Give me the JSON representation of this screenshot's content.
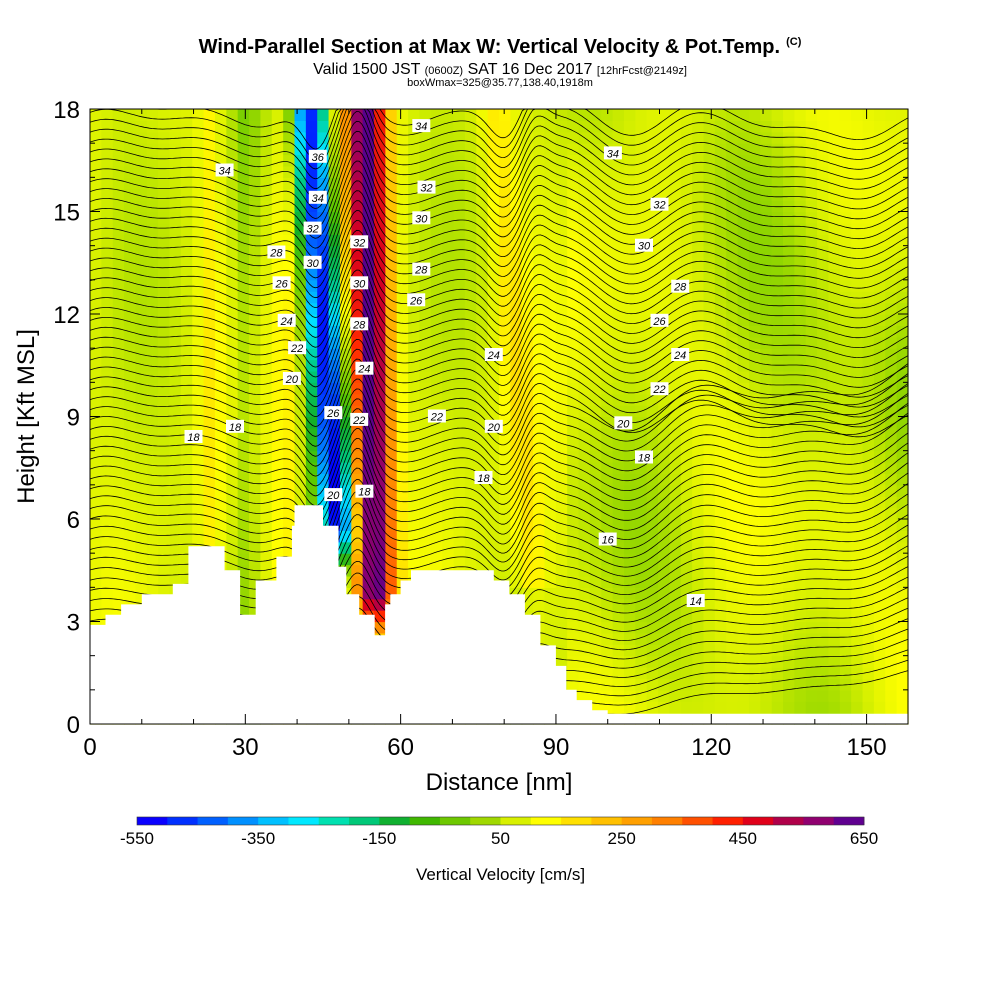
{
  "title": {
    "main": "Wind-Parallel Section at Max W: Vertical Velocity & Pot.Temp.",
    "main_sup": "(C)",
    "valid_prefix": "Valid 1500 JST",
    "valid_utc": "(0600Z)",
    "valid_date": "SAT 16 Dec 2017",
    "forecast": "[12hrFcst@2149z]",
    "boxline": "boxWmax=325@35.77,138.40,1918m"
  },
  "colors": {
    "terrain": "#ffffff",
    "contour": "#000000",
    "colorbar": [
      "#0a00ff",
      "#0030ff",
      "#0060ff",
      "#0090ff",
      "#00c0ff",
      "#00e8ff",
      "#00e0b0",
      "#00c878",
      "#10b030",
      "#40b800",
      "#6ec800",
      "#a0d800",
      "#d8f000",
      "#ffff00",
      "#ffe000",
      "#ffc000",
      "#ffa000",
      "#ff8000",
      "#ff5000",
      "#ff2000",
      "#e0001a",
      "#b0004a",
      "#900070",
      "#600090"
    ]
  },
  "chart_data": {
    "type": "heatmap",
    "xlabel": "Distance [nm]",
    "ylabel": "Height [Kft MSL]",
    "xlim": [
      0,
      158
    ],
    "ylim": [
      0,
      18
    ],
    "xticks": [
      0,
      30,
      60,
      90,
      120,
      150
    ],
    "yticks": [
      0,
      3,
      6,
      9,
      12,
      15,
      18
    ],
    "fill_variable": {
      "name": "Vertical Velocity [cm/s]",
      "range": [
        -550,
        650
      ],
      "ticks": [
        -550,
        -350,
        -150,
        50,
        250,
        450,
        650
      ],
      "features": [
        {
          "kind": "downdraft",
          "x_center": 45,
          "min_value": -550,
          "height_range": [
            6,
            18
          ]
        },
        {
          "kind": "updraft",
          "x_center": 53,
          "max_value": 650,
          "height_range": [
            4,
            18
          ]
        }
      ]
    },
    "contour_variable": {
      "name": "Pot.Temp. (C)",
      "interval": 2,
      "labels": [
        {
          "value": 34,
          "x": 26,
          "y": 16.2
        },
        {
          "value": 36,
          "x": 44,
          "y": 16.6
        },
        {
          "value": 34,
          "x": 44,
          "y": 15.4
        },
        {
          "value": 32,
          "x": 43,
          "y": 14.5
        },
        {
          "value": 30,
          "x": 43,
          "y": 13.5
        },
        {
          "value": 28,
          "x": 36,
          "y": 13.8
        },
        {
          "value": 26,
          "x": 37,
          "y": 12.9
        },
        {
          "value": 24,
          "x": 38,
          "y": 11.8
        },
        {
          "value": 22,
          "x": 40,
          "y": 11.0
        },
        {
          "value": 20,
          "x": 39,
          "y": 10.1
        },
        {
          "value": 18,
          "x": 20,
          "y": 8.4
        },
        {
          "value": 18,
          "x": 28,
          "y": 8.7
        },
        {
          "value": 26,
          "x": 47,
          "y": 9.1
        },
        {
          "value": 20,
          "x": 47,
          "y": 6.7
        },
        {
          "value": 32,
          "x": 52,
          "y": 14.1
        },
        {
          "value": 30,
          "x": 52,
          "y": 12.9
        },
        {
          "value": 28,
          "x": 52,
          "y": 11.7
        },
        {
          "value": 24,
          "x": 53,
          "y": 10.4
        },
        {
          "value": 22,
          "x": 52,
          "y": 8.9
        },
        {
          "value": 18,
          "x": 53,
          "y": 6.8
        },
        {
          "value": 34,
          "x": 64,
          "y": 17.5
        },
        {
          "value": 32,
          "x": 65,
          "y": 15.7
        },
        {
          "value": 30,
          "x": 64,
          "y": 14.8
        },
        {
          "value": 28,
          "x": 64,
          "y": 13.3
        },
        {
          "value": 26,
          "x": 63,
          "y": 12.4
        },
        {
          "value": 24,
          "x": 78,
          "y": 10.8
        },
        {
          "value": 22,
          "x": 67,
          "y": 9.0
        },
        {
          "value": 20,
          "x": 78,
          "y": 8.7
        },
        {
          "value": 18,
          "x": 76,
          "y": 7.2
        },
        {
          "value": 34,
          "x": 101,
          "y": 16.7
        },
        {
          "value": 32,
          "x": 110,
          "y": 15.2
        },
        {
          "value": 30,
          "x": 107,
          "y": 14.0
        },
        {
          "value": 28,
          "x": 114,
          "y": 12.8
        },
        {
          "value": 26,
          "x": 110,
          "y": 11.8
        },
        {
          "value": 24,
          "x": 114,
          "y": 10.8
        },
        {
          "value": 22,
          "x": 110,
          "y": 9.8
        },
        {
          "value": 20,
          "x": 103,
          "y": 8.8
        },
        {
          "value": 18,
          "x": 107,
          "y": 7.8
        },
        {
          "value": 16,
          "x": 100,
          "y": 5.4
        },
        {
          "value": 14,
          "x": 117,
          "y": 3.6
        }
      ]
    },
    "terrain_profile": [
      [
        0,
        2.9
      ],
      [
        3,
        2.9
      ],
      [
        3,
        3.2
      ],
      [
        6,
        3.2
      ],
      [
        6,
        3.5
      ],
      [
        10,
        3.5
      ],
      [
        10,
        3.8
      ],
      [
        16,
        3.8
      ],
      [
        16,
        4.1
      ],
      [
        19,
        4.1
      ],
      [
        19,
        5.2
      ],
      [
        26,
        5.2
      ],
      [
        26,
        4.5
      ],
      [
        29,
        4.5
      ],
      [
        29,
        3.2
      ],
      [
        32,
        3.2
      ],
      [
        32,
        4.2
      ],
      [
        36,
        4.2
      ],
      [
        36,
        4.9
      ],
      [
        39,
        4.9
      ],
      [
        39,
        5.8
      ],
      [
        39.5,
        5.8
      ],
      [
        39.5,
        6.4
      ],
      [
        45,
        6.4
      ],
      [
        45,
        5.8
      ],
      [
        48,
        5.8
      ],
      [
        48,
        4.6
      ],
      [
        49.5,
        4.6
      ],
      [
        49.5,
        3.8
      ],
      [
        52,
        3.8
      ],
      [
        52,
        3.2
      ],
      [
        55,
        3.2
      ],
      [
        55,
        2.6
      ],
      [
        57,
        2.6
      ],
      [
        57,
        3.5
      ],
      [
        58,
        3.5
      ],
      [
        58,
        3.8
      ],
      [
        60,
        3.8
      ],
      [
        60,
        4.2
      ],
      [
        62,
        4.2
      ],
      [
        62,
        4.5
      ],
      [
        78,
        4.5
      ],
      [
        78,
        4.2
      ],
      [
        81,
        4.2
      ],
      [
        81,
        3.8
      ],
      [
        84,
        3.8
      ],
      [
        84,
        3.2
      ],
      [
        87,
        3.2
      ],
      [
        87,
        2.3
      ],
      [
        90,
        2.3
      ],
      [
        90,
        1.7
      ],
      [
        92,
        1.7
      ],
      [
        92,
        1.0
      ],
      [
        94,
        1.0
      ],
      [
        94,
        0.7
      ],
      [
        97,
        0.7
      ],
      [
        97,
        0.4
      ],
      [
        100,
        0.4
      ],
      [
        100,
        0.3
      ],
      [
        158,
        0.3
      ],
      [
        158,
        0
      ],
      [
        0,
        0
      ]
    ]
  }
}
